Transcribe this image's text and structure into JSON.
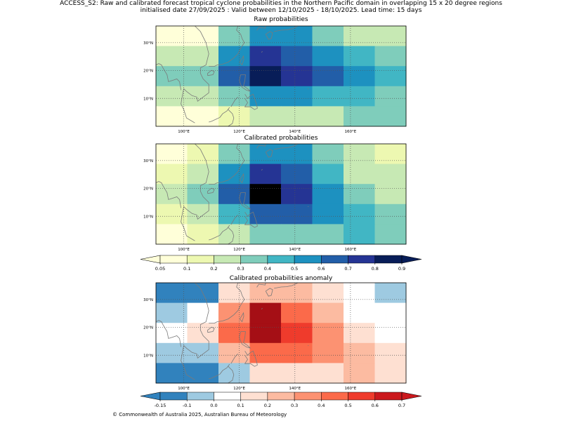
{
  "title_line1": "ACCESS_S2: Raw and calibrated forecast tropical cyclone probabilities in the Northern Pacific domain in overlapping 15 x 20 degree regions",
  "title_line2": "initialised date 27/09/2025 :  Valid between 12/10/2025 - 18/10/2025. Lead time: 15 days",
  "panels": {
    "raw": {
      "title": "Raw probabilities"
    },
    "calibrated": {
      "title": "Calibrated probabilities"
    },
    "anomaly": {
      "title": "Calibrated probabilities anomaly"
    }
  },
  "lon_labels": [
    "100°E",
    "120°E",
    "140°E",
    "160°E"
  ],
  "lat_labels": [
    "30°N",
    "20°N",
    "10°N"
  ],
  "prob_colorbar": {
    "ticks": [
      "0.05",
      "0.1",
      "0.2",
      "0.3",
      "0.4",
      "0.5",
      "0.6",
      "0.7",
      "0.8",
      "0.9"
    ],
    "colors": [
      "#ffffff",
      "#ffffd9",
      "#edf8b1",
      "#c7e9b4",
      "#7fcdbb",
      "#41b6c4",
      "#1d91c0",
      "#225ea8",
      "#253494",
      "#081d58"
    ]
  },
  "anom_colorbar": {
    "ticks": [
      "-0.15",
      "-0.1",
      "0.0",
      "0.1",
      "0.2",
      "0.3",
      "0.4",
      "0.5",
      "0.6",
      "0.7"
    ],
    "colors": [
      "#3182bd",
      "#9ecae1",
      "#ffffff",
      "#fee0d2",
      "#fcbba1",
      "#fc9272",
      "#fb6a4a",
      "#ef3b2c",
      "#cb181d",
      "#a50f15",
      "#67000d"
    ]
  },
  "grids": {
    "raw": [
      [
        0,
        0,
        3,
        5,
        5,
        3,
        2,
        2
      ],
      [
        2,
        2,
        5,
        7,
        6,
        5,
        4,
        3
      ],
      [
        3,
        3,
        6,
        8,
        7,
        6,
        5,
        4
      ],
      [
        2,
        2,
        3,
        5,
        5,
        4,
        4,
        3
      ],
      [
        0,
        0,
        1,
        2,
        2,
        2,
        3,
        3
      ]
    ],
    "calibrated": [
      [
        0,
        1,
        3,
        5,
        5,
        3,
        2,
        1
      ],
      [
        1,
        2,
        5,
        7,
        6,
        4,
        2,
        2
      ],
      [
        2,
        3,
        6,
        9,
        7,
        5,
        3,
        2
      ],
      [
        1,
        2,
        4,
        6,
        6,
        5,
        4,
        3
      ],
      [
        0,
        1,
        2,
        3,
        3,
        3,
        4,
        3
      ]
    ],
    "anomaly": [
      [
        0,
        0,
        3,
        4,
        4,
        3,
        2,
        1
      ],
      [
        1,
        2,
        5,
        8,
        6,
        4,
        2,
        2
      ],
      [
        2,
        3,
        6,
        9,
        7,
        5,
        3,
        2
      ],
      [
        1,
        1,
        4,
        6,
        6,
        5,
        4,
        3
      ],
      [
        0,
        0,
        1,
        3,
        3,
        3,
        4,
        3
      ]
    ]
  },
  "chart_data": {
    "type": "heatmap",
    "domain": "Northern Pacific, approx. 90°E–180°E, 0°–35°N",
    "x_ticks": [
      "100°E",
      "120°E",
      "140°E",
      "160°E"
    ],
    "y_ticks": [
      "10°N",
      "20°N",
      "30°N"
    ],
    "note": "Grid values are colour-class indices (rows top→bottom, columns west→east)."
  },
  "copyright": "© Commonwealth of Australia 2025, Australian Bureau of Meteorology"
}
